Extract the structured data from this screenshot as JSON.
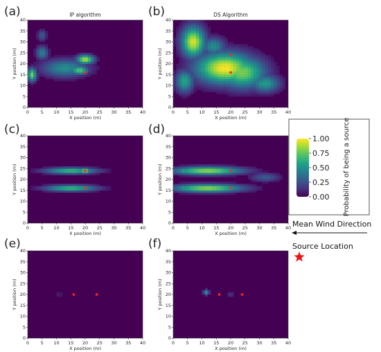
{
  "colors": {
    "background": "#440154",
    "source_marker": "#ff2a1a",
    "legend_star": "#ee1111"
  },
  "chart_data": [
    {
      "panel": "(a)",
      "title": "IP algorithm",
      "type": "heatmap",
      "xlabel": "X position (m)",
      "ylabel": "Y position (m)",
      "xlim": [
        0,
        40
      ],
      "ylim": [
        0,
        40
      ],
      "xticks": [
        0,
        5,
        10,
        15,
        20,
        25,
        30,
        35,
        40
      ],
      "yticks": [
        0,
        5,
        10,
        15,
        20,
        25,
        30,
        35,
        40
      ],
      "blobs": [
        {
          "x": 13,
          "y": 18,
          "sx": 8,
          "sy": 4,
          "v": 0.5
        },
        {
          "x": 20,
          "y": 22,
          "sx": 3,
          "sy": 2,
          "v": 0.9
        },
        {
          "x": 18,
          "y": 17,
          "sx": 3,
          "sy": 2,
          "v": 0.75
        },
        {
          "x": 1.5,
          "y": 15,
          "sx": 1.5,
          "sy": 3,
          "v": 0.8
        },
        {
          "x": 5,
          "y": 25,
          "sx": 2,
          "sy": 3,
          "v": 0.45
        },
        {
          "x": 5,
          "y": 33,
          "sx": 1.5,
          "sy": 2.5,
          "v": 0.3
        }
      ],
      "sources": [
        {
          "x": 20,
          "y": 16
        }
      ]
    },
    {
      "panel": "(b)",
      "title": "DS Algorithm",
      "type": "heatmap",
      "xlabel": "X position (m)",
      "ylabel": "Y position (m)",
      "xlim": [
        0,
        40
      ],
      "ylim": [
        0,
        40
      ],
      "xticks": [
        0,
        5,
        10,
        15,
        20,
        25,
        30,
        35,
        40
      ],
      "yticks": [
        0,
        5,
        10,
        15,
        20,
        25,
        30,
        35,
        40
      ],
      "blobs": [
        {
          "x": 18,
          "y": 18,
          "sx": 10,
          "sy": 7,
          "v": 1.0
        },
        {
          "x": 7,
          "y": 30,
          "sx": 4,
          "sy": 7,
          "v": 0.95
        },
        {
          "x": 24,
          "y": 16,
          "sx": 8,
          "sy": 7,
          "v": 0.8
        },
        {
          "x": 32,
          "y": 11,
          "sx": 5,
          "sy": 4,
          "v": 0.55
        },
        {
          "x": 4,
          "y": 12,
          "sx": 3,
          "sy": 5,
          "v": 0.6
        },
        {
          "x": 14,
          "y": 28,
          "sx": 4,
          "sy": 4,
          "v": 0.5
        }
      ],
      "sources": [
        {
          "x": 20,
          "y": 24
        },
        {
          "x": 20,
          "y": 16
        }
      ]
    },
    {
      "panel": "(c)",
      "type": "heatmap",
      "xlabel": "X position (m)",
      "ylabel": "Y position (m)",
      "xlim": [
        0,
        40
      ],
      "ylim": [
        0,
        40
      ],
      "xticks": [
        0,
        5,
        10,
        15,
        20,
        25,
        30,
        35,
        40
      ],
      "yticks": [
        0,
        5,
        10,
        15,
        20,
        25,
        30,
        35,
        40
      ],
      "blobs": [
        {
          "x": 15,
          "y": 24,
          "sx": 9,
          "sy": 1.4,
          "v": 0.7
        },
        {
          "x": 15,
          "y": 16,
          "sx": 9,
          "sy": 1.4,
          "v": 0.7
        },
        {
          "x": 20,
          "y": 24,
          "sx": 2,
          "sy": 1.2,
          "v": 0.85
        },
        {
          "x": 16,
          "y": 16,
          "sx": 2,
          "sy": 1.2,
          "v": 0.75
        }
      ],
      "sources": [
        {
          "x": 20,
          "y": 24
        },
        {
          "x": 20,
          "y": 16
        }
      ]
    },
    {
      "panel": "(d)",
      "type": "heatmap",
      "xlabel": "X position (m)",
      "ylabel": "Y position (m)",
      "xlim": [
        0,
        40
      ],
      "ylim": [
        0,
        40
      ],
      "xticks": [
        0,
        5,
        10,
        15,
        20,
        25,
        30,
        35,
        40
      ],
      "yticks": [
        0,
        5,
        10,
        15,
        20,
        25,
        30,
        35,
        40
      ],
      "blobs": [
        {
          "x": 12,
          "y": 24,
          "sx": 12,
          "sy": 1.8,
          "v": 0.85
        },
        {
          "x": 12,
          "y": 16,
          "sx": 12,
          "sy": 1.8,
          "v": 0.85
        },
        {
          "x": 4,
          "y": 24,
          "sx": 3,
          "sy": 1.5,
          "v": 0.6
        },
        {
          "x": 4,
          "y": 16,
          "sx": 3,
          "sy": 1.5,
          "v": 0.6
        },
        {
          "x": 32,
          "y": 21,
          "sx": 5,
          "sy": 2,
          "v": 0.3
        }
      ],
      "sources": [
        {
          "x": 20,
          "y": 24
        },
        {
          "x": 20,
          "y": 16
        }
      ]
    },
    {
      "panel": "(e)",
      "type": "heatmap",
      "xlabel": "X position (m)",
      "ylabel": "Y position (m)",
      "xlim": [
        0,
        40
      ],
      "ylim": [
        0,
        40
      ],
      "xticks": [
        0,
        5,
        10,
        15,
        20,
        25,
        30,
        35,
        40
      ],
      "yticks": [
        0,
        5,
        10,
        15,
        20,
        25,
        30,
        35,
        40
      ],
      "blobs": [
        {
          "x": 11,
          "y": 20,
          "sx": 0.8,
          "sy": 0.6,
          "v": 0.2
        }
      ],
      "sources": [
        {
          "x": 16,
          "y": 20
        },
        {
          "x": 24,
          "y": 20
        }
      ]
    },
    {
      "panel": "(f)",
      "type": "heatmap",
      "xlabel": "X position (m)",
      "ylabel": "Y position (m)",
      "xlim": [
        0,
        40
      ],
      "ylim": [
        0,
        40
      ],
      "xticks": [
        0,
        5,
        10,
        15,
        20,
        25,
        30,
        35,
        40
      ],
      "yticks": [
        0,
        5,
        10,
        15,
        20,
        25,
        30,
        35,
        40
      ],
      "blobs": [
        {
          "x": 11.5,
          "y": 21,
          "sx": 1.0,
          "sy": 1.2,
          "v": 0.55
        },
        {
          "x": 20,
          "y": 20,
          "sx": 1.2,
          "sy": 0.8,
          "v": 0.2
        }
      ],
      "sources": [
        {
          "x": 16,
          "y": 20
        },
        {
          "x": 24,
          "y": 20
        }
      ]
    }
  ],
  "colorbar": {
    "label": "Probability of being a source",
    "range": [
      0,
      1
    ],
    "ticks": [
      "1.00",
      "0.75",
      "0.50",
      "0.25",
      "0.00"
    ],
    "tick_values": [
      1.0,
      0.75,
      0.5,
      0.25,
      0.0
    ]
  },
  "legend": {
    "wind_label": "Mean Wind Direction",
    "source_label": "Source Location",
    "wind_arrow": "left"
  }
}
